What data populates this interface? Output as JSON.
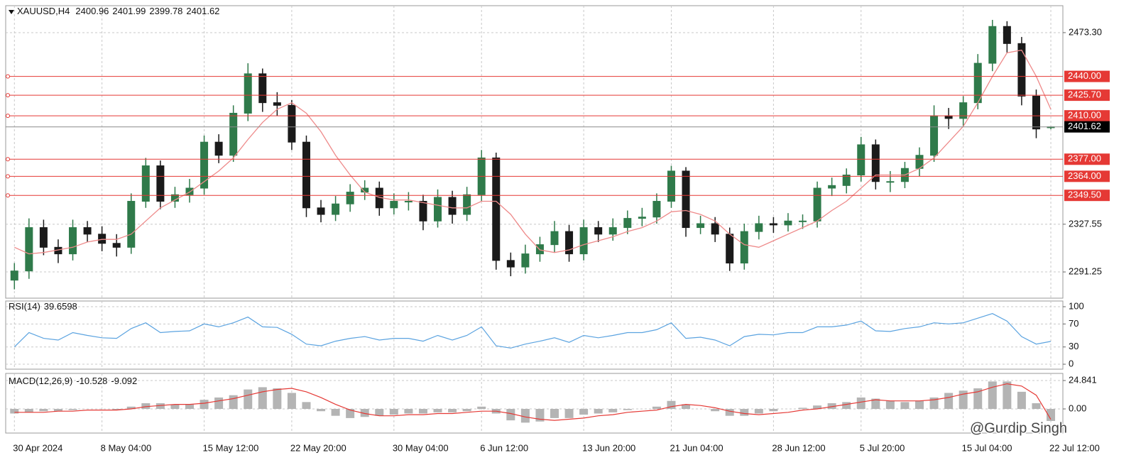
{
  "chart_data": [
    {
      "type": "candlestick",
      "title": "XAUUSD,H4",
      "categories": [
        "30 Apr 2024",
        null,
        null,
        null,
        null,
        null,
        "8 May 04:00",
        null,
        null,
        null,
        null,
        null,
        null,
        "15 May 12:00",
        null,
        null,
        null,
        null,
        null,
        "22 May 20:00",
        null,
        null,
        null,
        null,
        null,
        null,
        "30 May 04:00",
        null,
        null,
        null,
        null,
        null,
        "6 Jun 12:00",
        null,
        null,
        null,
        null,
        null,
        null,
        "13 Jun 20:00",
        null,
        null,
        null,
        null,
        null,
        "21 Jun 04:00",
        null,
        null,
        null,
        null,
        null,
        null,
        "28 Jun 12:00",
        null,
        null,
        null,
        null,
        null,
        "5 Jul 20:00",
        null,
        null,
        null,
        null,
        null,
        null,
        "15 Jul 04:00",
        null,
        null,
        null,
        null,
        null,
        "22 Jul 12:00"
      ],
      "open": [
        2285,
        2292,
        2325,
        2310,
        2305,
        2325,
        2320,
        2313,
        2310,
        2345,
        2372,
        2345,
        2350,
        2355,
        2390,
        2380,
        2412,
        2442,
        2420,
        2418,
        2390,
        2340,
        2335,
        2343,
        2352,
        2355,
        2340,
        2345,
        2345,
        2330,
        2348,
        2335,
        2350,
        2378,
        2300,
        2295,
        2305,
        2312,
        2322,
        2305,
        2325,
        2320,
        2325,
        2332,
        2333,
        2345,
        2368,
        2325,
        2328,
        2320,
        2298,
        2322,
        2328,
        2327,
        2330,
        2330,
        2355,
        2357,
        2365,
        2388,
        2360,
        2360,
        2370,
        2380,
        2410,
        2408,
        2420,
        2450,
        2478,
        2465,
        2425,
        2400.96
      ],
      "high": [
        2298,
        2332,
        2331,
        2316,
        2331,
        2330,
        2326,
        2320,
        2351,
        2378,
        2376,
        2356,
        2362,
        2395,
        2396,
        2418,
        2450,
        2446,
        2428,
        2422,
        2395,
        2346,
        2349,
        2358,
        2361,
        2360,
        2351,
        2352,
        2350,
        2354,
        2353,
        2356,
        2384,
        2382,
        2306,
        2312,
        2318,
        2330,
        2327,
        2331,
        2330,
        2332,
        2338,
        2340,
        2351,
        2372,
        2371,
        2334,
        2333,
        2325,
        2328,
        2334,
        2333,
        2336,
        2335,
        2360,
        2363,
        2370,
        2394,
        2392,
        2368,
        2375,
        2386,
        2418,
        2416,
        2425,
        2457,
        2483,
        2482,
        2470,
        2430,
        2401.99
      ],
      "low": [
        2278,
        2286,
        2304,
        2298,
        2300,
        2314,
        2307,
        2303,
        2305,
        2340,
        2339,
        2340,
        2344,
        2350,
        2374,
        2375,
        2406,
        2413,
        2410,
        2384,
        2333,
        2329,
        2330,
        2337,
        2346,
        2334,
        2335,
        2338,
        2323,
        2325,
        2328,
        2330,
        2345,
        2293,
        2288,
        2290,
        2299,
        2306,
        2299,
        2300,
        2314,
        2315,
        2320,
        2326,
        2328,
        2340,
        2318,
        2320,
        2314,
        2292,
        2293,
        2316,
        2321,
        2322,
        2324,
        2325,
        2349,
        2351,
        2360,
        2354,
        2352,
        2355,
        2364,
        2375,
        2400,
        2402,
        2415,
        2444,
        2458,
        2418,
        2393,
        2399.78
      ],
      "close": [
        2292,
        2325,
        2310,
        2305,
        2325,
        2320,
        2313,
        2310,
        2345,
        2372,
        2345,
        2350,
        2355,
        2390,
        2380,
        2412,
        2442,
        2420,
        2418,
        2390,
        2340,
        2335,
        2343,
        2352,
        2355,
        2340,
        2345,
        2345,
        2330,
        2348,
        2335,
        2350,
        2378,
        2300,
        2295,
        2305,
        2312,
        2322,
        2305,
        2325,
        2320,
        2325,
        2332,
        2333,
        2345,
        2368,
        2325,
        2328,
        2320,
        2298,
        2322,
        2328,
        2327,
        2330,
        2330,
        2355,
        2357,
        2365,
        2388,
        2360,
        2360,
        2370,
        2380,
        2410,
        2408,
        2420,
        2450,
        2478,
        2465,
        2425,
        2400,
        2401.62
      ],
      "colors": {
        "up": "#2f7a4a",
        "down": "#1a1a1a"
      },
      "ma": {
        "color": "#ee8a8a",
        "values": [
          2310,
          2305,
          2306,
          2308,
          2310,
          2314,
          2316,
          2316,
          2320,
          2330,
          2340,
          2346,
          2352,
          2360,
          2368,
          2378,
          2392,
          2405,
          2415,
          2420,
          2412,
          2398,
          2380,
          2365,
          2352,
          2348,
          2346,
          2346,
          2344,
          2342,
          2340,
          2340,
          2345,
          2345,
          2335,
          2320,
          2308,
          2306,
          2308,
          2312,
          2315,
          2318,
          2322,
          2325,
          2330,
          2337,
          2338,
          2335,
          2330,
          2320,
          2312,
          2310,
          2315,
          2320,
          2325,
          2330,
          2338,
          2345,
          2355,
          2365,
          2365,
          2365,
          2370,
          2378,
          2390,
          2402,
          2420,
          2440,
          2458,
          2460,
          2440,
          2415
        ]
      },
      "levels": [
        {
          "value": 2440,
          "label": "2440.00"
        },
        {
          "value": 2425.7,
          "label": "2425.70"
        },
        {
          "value": 2410,
          "label": "2410.00"
        },
        {
          "value": 2377,
          "label": "2377.00"
        },
        {
          "value": 2364,
          "label": "2364.00"
        },
        {
          "value": 2349.5,
          "label": "2349.50"
        }
      ],
      "level_color": "#e53935",
      "ylim": [
        2271.3,
        2493.8
      ],
      "yticks": [
        {
          "value": 2473.3,
          "label": "2473.30"
        },
        2327.55,
        2291.25
      ],
      "grid": true
    },
    {
      "type": "line",
      "title": "RSI(14)",
      "color": "#5ba3e0",
      "values": [
        30,
        55,
        45,
        42,
        55,
        50,
        46,
        45,
        62,
        72,
        55,
        57,
        58,
        70,
        65,
        72,
        82,
        65,
        64,
        52,
        35,
        32,
        40,
        45,
        48,
        42,
        45,
        45,
        40,
        50,
        42,
        50,
        65,
        32,
        28,
        35,
        40,
        46,
        38,
        50,
        46,
        50,
        55,
        55,
        60,
        72,
        45,
        47,
        42,
        32,
        48,
        52,
        51,
        55,
        55,
        65,
        65,
        68,
        75,
        58,
        57,
        62,
        65,
        72,
        70,
        72,
        80,
        88,
        75,
        48,
        35,
        39.6598
      ],
      "ylim": [
        -8.6,
        109.9
      ],
      "yticks": [
        100,
        70,
        30,
        0
      ],
      "grid": true
    },
    {
      "type": "macd",
      "title": "MACD(12,26,9)",
      "histogram": [
        -4,
        -3,
        -2,
        -2,
        -1,
        0,
        0,
        -1,
        2,
        5,
        5,
        4,
        4,
        8,
        10,
        12,
        17,
        19,
        18,
        14,
        6,
        -2,
        -6,
        -8,
        -7,
        -6,
        -5,
        -4,
        -4,
        -3,
        -3,
        -2,
        2,
        -4,
        -10,
        -12,
        -11,
        -8,
        -8,
        -5,
        -4,
        -3,
        -1,
        0,
        2,
        7,
        4,
        0,
        -2,
        -6,
        -6,
        -4,
        -2,
        0,
        1,
        3,
        5,
        6,
        10,
        9,
        7,
        6,
        7,
        10,
        14,
        16,
        18,
        24,
        24,
        15,
        5,
        -10.528
      ],
      "signal": [
        -3,
        -3,
        -3,
        -2,
        -2,
        -1,
        -1,
        -1,
        0,
        2,
        3,
        4,
        4,
        5,
        7,
        9,
        12,
        15,
        17,
        18,
        15,
        10,
        4,
        -1,
        -4,
        -6,
        -6,
        -5,
        -5,
        -4,
        -4,
        -3,
        -2,
        -2,
        -4,
        -7,
        -9,
        -10,
        -9,
        -8,
        -6,
        -5,
        -3,
        -2,
        -1,
        2,
        4,
        3,
        1,
        -2,
        -4,
        -5,
        -4,
        -3,
        -1,
        0,
        2,
        4,
        6,
        8,
        7,
        7,
        7,
        8,
        10,
        13,
        15,
        19,
        22,
        20,
        12,
        -9.092
      ],
      "hist_color": "#b4b4b4",
      "signal_color": "#e53935",
      "ylim": [
        -21.1,
        31.05
      ],
      "yticks": [
        24.841,
        {
          "value": 0,
          "label": "0.00"
        }
      ],
      "grid": true
    }
  ],
  "watermark": "@Gurdip Singh"
}
